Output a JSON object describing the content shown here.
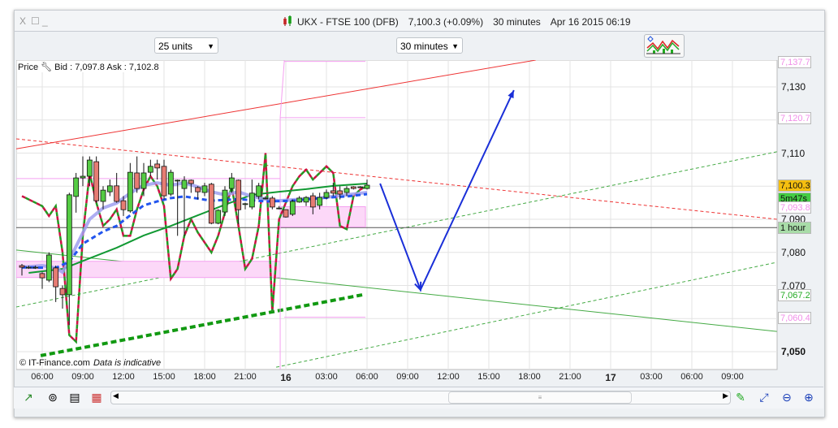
{
  "window": {
    "controls": [
      "X",
      "☐",
      "_"
    ],
    "title": {
      "symbol": "UKX - FTSE 100 (DFB)",
      "price": "7,100.3 (+0.09%)",
      "interval": "30 minutes",
      "datetime": "Apr 16 2015 06:19"
    }
  },
  "toolbar": {
    "units_select": "25 units",
    "interval_select": "30 minutes",
    "indicators_icon": "indicators-chart-icon"
  },
  "chart_header": {
    "label": "Price",
    "bid_ask": "Bid : 7,097.8 Ask : 7,102.8",
    "settings_icon": "wrench-icon"
  },
  "footer": {
    "copyright": "© IT-Finance.com",
    "note": "Data is indicative"
  },
  "bottom_toolbar": {
    "icons": [
      "chart-type-icon",
      "link-icon",
      "properties-icon",
      "table-icon",
      "scroll-left-icon",
      "scroll-right-icon",
      "draw-tool-icon",
      "zoom-fit-icon",
      "zoom-out-icon",
      "zoom-in-icon"
    ]
  },
  "colors": {
    "up": "#55cc44",
    "down": "#e67c73",
    "ma_light": "#9f9ff0",
    "ma_blue": "#2255ee",
    "ma_green": "#119933",
    "trend_red": "#ee3333",
    "trend_green": "#33aa33",
    "level_pink": "#f4a0f0",
    "arrow": "#1a2fd8",
    "last_price": "#f5bf10"
  },
  "chart_data": {
    "type": "candlestick",
    "interval": "30 minutes",
    "start": "Apr 15 04:30",
    "ylim": [
      7045,
      7140
    ],
    "y_ticks": [
      {
        "v": 7130,
        "label": "7,130"
      },
      {
        "v": 7110,
        "label": "7,110"
      },
      {
        "v": 7090,
        "label": "7,090"
      },
      {
        "v": 7080,
        "label": "7,080"
      },
      {
        "v": 7070,
        "label": "7,070"
      },
      {
        "v": 7050,
        "label": "7,050",
        "bold": true
      }
    ],
    "x_ticks": [
      "06:00",
      "09:00",
      "12:00",
      "15:00",
      "18:00",
      "21:00",
      "16",
      "03:00",
      "06:00",
      "09:00",
      "12:00",
      "15:00",
      "18:00",
      "21:00",
      "17",
      "03:00",
      "06:00",
      "09:00"
    ],
    "price_tags": [
      {
        "label": "7,137.7",
        "v": 7137.7,
        "color": "#f08ee8",
        "bg": "#fff"
      },
      {
        "label": "7,120.7",
        "v": 7120.7,
        "color": "#f08ee8",
        "bg": "#fff"
      },
      {
        "label": "7,100.3",
        "v": 7100.3,
        "color": "#111",
        "bg": "#f5bf10"
      },
      {
        "label": "5m47s",
        "v": 7096.5,
        "color": "#111",
        "bg": "#44cc44"
      },
      {
        "label": "7,093.8",
        "v": 7093.8,
        "color": "#f08ee8",
        "bg": "#fff"
      },
      {
        "label": "1 hour",
        "v": 7087.5,
        "color": "#111",
        "bg": "#a8dca8"
      },
      {
        "label": "7,067.2",
        "v": 7067.2,
        "color": "#22aa22",
        "bg": "#fff"
      },
      {
        "label": "7,060.4",
        "v": 7060.4,
        "color": "#f08ee8",
        "bg": "#fff"
      }
    ],
    "candles": [
      [
        7076,
        7076.5,
        7073,
        7075.5
      ],
      [
        7075.5,
        7076,
        7075,
        7075.5
      ],
      [
        7075.5,
        7076,
        7075,
        7075.5
      ],
      [
        7073.6,
        7074,
        7069,
        7072.3
      ],
      [
        7071.6,
        7080,
        7071,
        7079.2
      ],
      [
        7075.3,
        7076,
        7065,
        7069.6
      ],
      [
        7069.1,
        7070,
        7063,
        7067.2
      ],
      [
        7067.2,
        7098,
        7058,
        7097.4
      ],
      [
        7096.9,
        7104,
        7092,
        7102.5
      ],
      [
        7102.5,
        7109,
        7100,
        7103
      ],
      [
        7103,
        7109,
        7100,
        7107.9
      ],
      [
        7107.4,
        7109,
        7095,
        7095.6
      ],
      [
        7095.4,
        7100,
        7093,
        7098.8
      ],
      [
        7098.3,
        7102,
        7097,
        7100.1
      ],
      [
        7100.1,
        7104,
        7095,
        7095.4
      ],
      [
        7095.6,
        7097,
        7091,
        7092.9
      ],
      [
        7092.5,
        7107,
        7092,
        7104.2
      ],
      [
        7104,
        7109,
        7098,
        7099.3
      ],
      [
        7099.3,
        7107,
        7097,
        7104
      ],
      [
        7104.2,
        7108,
        7103,
        7106
      ],
      [
        7106.7,
        7108,
        7102,
        7105.5
      ],
      [
        7106,
        7108,
        7096,
        7097.1
      ],
      [
        7097.6,
        7105,
        7097,
        7104.2
      ],
      [
        7101.8,
        7102,
        7085,
        7101.8
      ],
      [
        7099.3,
        7103,
        7085,
        7101.8
      ],
      [
        7101.8,
        7102,
        7098,
        7100.8
      ],
      [
        7099.6,
        7100,
        7096,
        7098.3
      ],
      [
        7098.1,
        7101,
        7097,
        7100.1
      ],
      [
        7100.6,
        7101,
        7088.5,
        7088.8
      ],
      [
        7088.8,
        7093,
        7088.5,
        7092.7
      ],
      [
        7092.2,
        7100,
        7091,
        7098.8
      ],
      [
        7099.3,
        7104,
        7098,
        7102.5
      ],
      [
        7101.8,
        7102,
        7088.5,
        7092.9
      ],
      [
        7094.7,
        7095,
        7093,
        7094.7
      ],
      [
        7093.7,
        7102,
        7093,
        7097.9
      ],
      [
        7096.9,
        7101,
        7096,
        7100.1
      ],
      [
        7096.4,
        7097,
        7096,
        7096.4
      ],
      [
        7096.4,
        7097,
        7093,
        7093.7
      ],
      [
        7093.4,
        7094,
        7093,
        7093.4
      ],
      [
        7092.9,
        7093,
        7090.5,
        7090.7
      ],
      [
        7091.5,
        7096,
        7091,
        7095.4
      ],
      [
        7095.2,
        7097,
        7095,
        7096.4
      ],
      [
        7095.2,
        7097,
        7094,
        7096.6
      ],
      [
        7097.1,
        7098,
        7091.5,
        7093.7
      ],
      [
        7094.2,
        7098,
        7093,
        7096.6
      ],
      [
        7096.6,
        7099,
        7096,
        7098.1
      ],
      [
        7098.6,
        7101,
        7097,
        7097.9
      ],
      [
        7098.6,
        7100,
        7096,
        7097.6
      ],
      [
        7098.1,
        7100,
        7097,
        7099.3
      ],
      [
        7099.8,
        7100,
        7099,
        7099.3
      ],
      [
        7099.8,
        7100,
        7099.5,
        7099.8
      ],
      [
        7099.3,
        7102,
        7099,
        7100.3
      ]
    ],
    "series": [
      {
        "key": "ma_light",
        "values": {
          "0": 7075.5,
          "3": 7076,
          "5": 7075.3,
          "6": 7074,
          "7": 7077.7,
          "10": 7090,
          "12": 7093.4,
          "14": 7094.9,
          "16": 7097.9,
          "18": 7100.3,
          "20": 7101,
          "22": 7100.3,
          "24": 7101,
          "26": 7099.8,
          "28": 7098.3,
          "30": 7097.4,
          "32": 7098.3,
          "34": 7096.9,
          "36": 7096.1,
          "38": 7095.6,
          "40": 7095.9,
          "44": 7096.4,
          "48": 7097.4,
          "51": 7098.1
        }
      },
      {
        "key": "ma_blue",
        "values": {
          "0": 7075.5,
          "5": 7075.3,
          "7": 7077.2,
          "9": 7082.6,
          "12": 7086.3,
          "14": 7088,
          "16": 7091.2,
          "18": 7094.2,
          "20": 7095.4,
          "22": 7096.4,
          "24": 7096.9,
          "28": 7095.6,
          "32": 7096.1,
          "36": 7095.4,
          "40": 7095.6,
          "44": 7096.4,
          "48": 7096.9,
          "51": 7097.6
        }
      },
      {
        "key": "ma_green",
        "values": {
          "1": 7073.8,
          "6": 7075,
          "10": 7078.2,
          "14": 7081.4,
          "18": 7085.1,
          "22": 7088,
          "26": 7091.2,
          "30": 7094.4,
          "34": 7097.4,
          "38": 7098.3,
          "42": 7099.1,
          "46": 7100.1,
          "51": 7100.8
        }
      },
      {
        "key": "envelope",
        "values": {
          "0": 7097,
          "3": 7094,
          "4": 7091,
          "5": 7094,
          "6": 7080,
          "7": 7055,
          "8": 7053,
          "9": 7085,
          "10": 7104,
          "11": 7095,
          "12": 7088,
          "13": 7090,
          "14": 7093,
          "15": 7085,
          "16": 7085,
          "17": 7093,
          "18": 7099,
          "19": 7103,
          "20": 7100,
          "21": 7094,
          "22": 7072,
          "23": 7075,
          "24": 7085,
          "25": 7090,
          "26": 7086,
          "27": 7083,
          "28": 7080,
          "29": 7085,
          "30": 7092,
          "31": 7100,
          "32": 7088,
          "33": 7075,
          "34": 7078,
          "35": 7088,
          "36": 7110,
          "37": 7062,
          "38": 7090,
          "39": 7095,
          "40": 7100,
          "41": 7103,
          "42": 7105,
          "43": 7102,
          "44": 7104,
          "45": 7106,
          "46": 7104,
          "47": 7088,
          "48": 7087,
          "49": 7097,
          "50": 7099,
          "51": 7100
        }
      }
    ],
    "drawings": [
      {
        "type": "line",
        "color": "#ee3333",
        "dash": false,
        "from": [
          "Apr 15 04:05",
          7111.3
        ],
        "to": [
          "Apr 16 18:28",
          7138.1
        ]
      },
      {
        "type": "line",
        "color": "#ee3333",
        "dash": true,
        "from": [
          "Apr 15 04:05",
          7114.3
        ],
        "to": [
          "Apr 17 12:17",
          7090
        ]
      },
      {
        "type": "line",
        "color": "#44aa44",
        "dash": false,
        "from": [
          "Apr 15 04:05",
          7080.7
        ],
        "to": [
          "Apr 17 12:17",
          7056.1
        ]
      },
      {
        "type": "line",
        "color": "#44aa44",
        "dash": true,
        "from": [
          "Apr 15 04:05",
          7063.5
        ],
        "to": [
          "Apr 17 12:17",
          7110.4
        ]
      },
      {
        "type": "line",
        "color": "#44aa44",
        "dash": true,
        "from": [
          "Apr 15 23:17",
          7045.3
        ],
        "to": [
          "Apr 17 12:17",
          7077
        ]
      },
      {
        "type": "thickdash",
        "color": "#119911",
        "from": [
          "Apr 15 05:53",
          7048.8
        ],
        "to": [
          "Apr 16 05:42",
          7067.2
        ]
      },
      {
        "type": "hline",
        "color": "#555",
        "v": 7087.5
      },
      {
        "type": "level",
        "color": "#f4a0f0",
        "v": 7102.3,
        "from": "Apr 15 04:05",
        "to": "Apr 15 23:35"
      },
      {
        "type": "band",
        "color": "#f4a0f0",
        "v1": 7077.3,
        "v2": 7072.4,
        "from": "Apr 15 04:05",
        "to": "Apr 15 23:35"
      },
      {
        "type": "level",
        "color": "#f4a0f0",
        "v": 7137.7,
        "from": "Apr 15 23:53",
        "to": "Apr 16 05:53"
      },
      {
        "type": "level",
        "color": "#f4a0f0",
        "v": 7120.7,
        "from": "Apr 15 23:35",
        "to": "Apr 16 05:53"
      },
      {
        "type": "band",
        "color": "#f4a0f0",
        "v1": 7093.8,
        "v2": 7087.7,
        "from": "Apr 15 23:35",
        "to": "Apr 16 05:53"
      },
      {
        "type": "level",
        "color": "#f4a0f0",
        "v": 7060.4,
        "from": "Apr 15 23:53",
        "to": "Apr 16 05:53"
      },
      {
        "type": "arrow",
        "color": "#1a2fd8",
        "points": [
          [
            "Apr 16 06:58",
            7100.8
          ],
          [
            "Apr 16 09:57",
            7068.7
          ],
          [
            "Apr 16 16:51",
            7129
          ]
        ]
      }
    ]
  }
}
